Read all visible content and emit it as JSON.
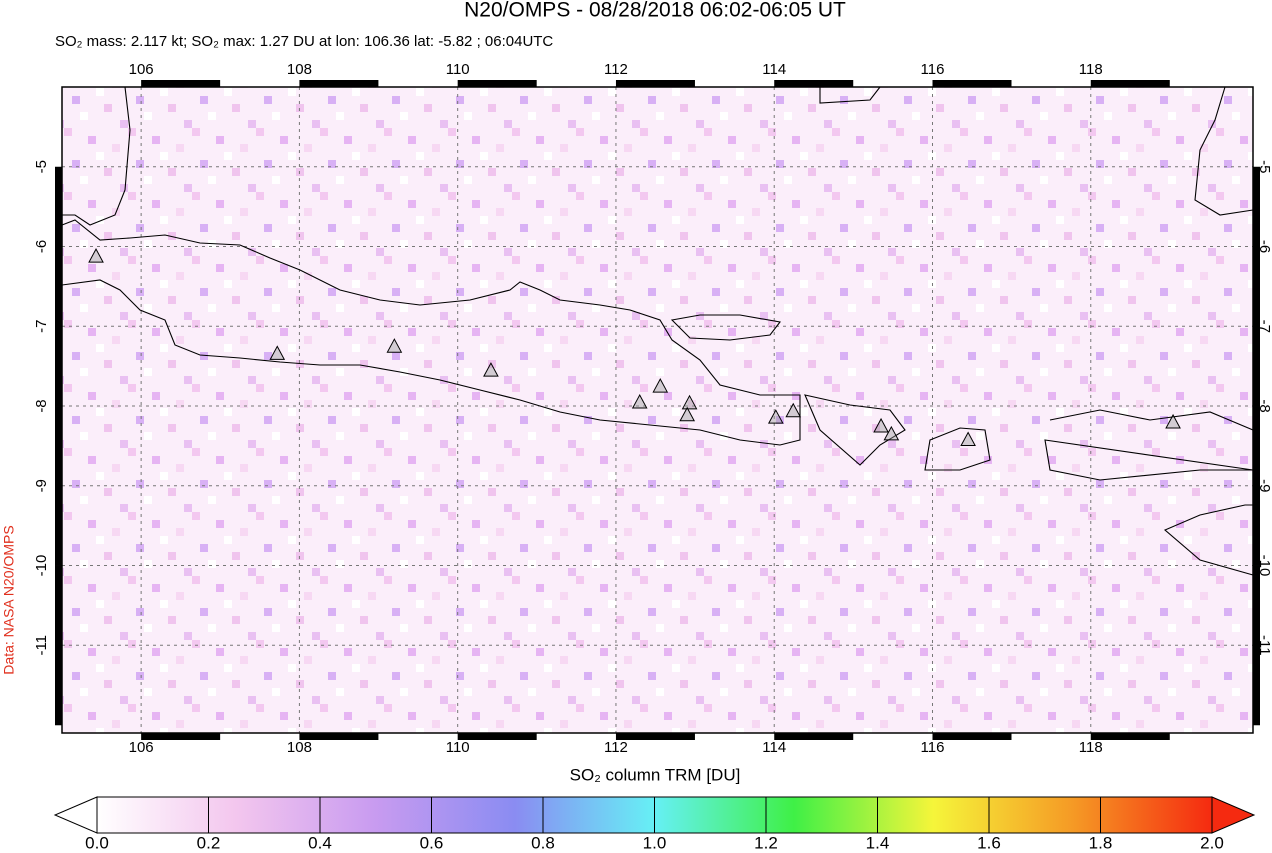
{
  "chart_data": {
    "type": "map",
    "title": "N20/OMPS - 08/28/2018 06:02-06:05 UT",
    "subtitle": "SO₂ mass: 2.117 kt; SO₂ max: 1.27 DU at lon: 106.36 lat: -5.82 ; 06:04UTC",
    "credit": "Data: NASA N20/OMPS",
    "colorbar_label": "SO₂ column TRM [DU]",
    "xlim": [
      105.0,
      120.05
    ],
    "ylim": [
      -12.1,
      -4.0
    ],
    "xticks": [
      106,
      108,
      110,
      112,
      114,
      116,
      118
    ],
    "yticks": [
      -5,
      -6,
      -7,
      -8,
      -9,
      -10,
      -11
    ],
    "grid": true,
    "volcanoes": {
      "color": "#999999",
      "x": [
        105.43,
        107.72,
        109.2,
        110.42,
        112.3,
        112.56,
        112.93,
        112.9,
        114.02,
        114.24,
        115.35,
        115.48,
        116.45,
        119.04
      ],
      "y": [
        -6.12,
        -7.34,
        -7.25,
        -7.55,
        -7.95,
        -7.75,
        -7.96,
        -8.11,
        -8.14,
        -8.06,
        -8.25,
        -8.35,
        -8.42,
        -8.2
      ]
    },
    "colorbar": {
      "lim": [
        0,
        2
      ],
      "ticks": [
        {
          "value": 0,
          "label": "0.0"
        },
        {
          "value": 0.2,
          "label": "0.2"
        },
        {
          "value": 0.4,
          "label": "0.4"
        },
        {
          "value": 0.6,
          "label": "0.6"
        },
        {
          "value": 0.8,
          "label": "0.8"
        },
        {
          "value": 1,
          "label": "1.0"
        },
        {
          "value": 1.2,
          "label": "1.2"
        },
        {
          "value": 1.4,
          "label": "1.4"
        },
        {
          "value": 1.6,
          "label": "1.6"
        },
        {
          "value": 1.8,
          "label": "1.8"
        },
        {
          "value": 2,
          "label": "2.0"
        }
      ],
      "colors": [
        "#ffffff",
        "#f3c6ee",
        "#c89bf0",
        "#8a8cf2",
        "#66f0f5",
        "#3ff046",
        "#f5f53a",
        "#f59a25",
        "#f52a10"
      ]
    }
  }
}
